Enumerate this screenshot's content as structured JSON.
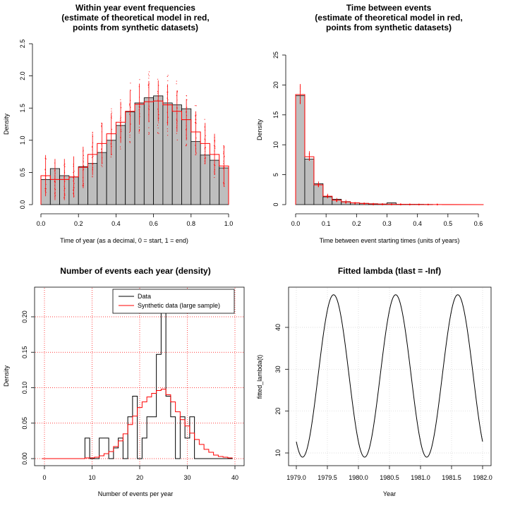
{
  "chart_data": [
    {
      "type": "bar",
      "title": "Within year event frequencies",
      "subtitle_lines": [
        "(estimate of theoretical model in red,",
        "points from synthetic datasets)"
      ],
      "xlabel": "Time of year (as a decimal, 0 = start, 1 = end)",
      "ylabel": "Density",
      "xlim": [
        0,
        1
      ],
      "ylim": [
        0,
        2.5
      ],
      "x_ticks": [
        "0.0",
        "0.2",
        "0.4",
        "0.6",
        "0.8",
        "1.0"
      ],
      "y_ticks": [
        "0.0",
        "0.5",
        "1.0",
        "1.5",
        "2.0",
        "2.5"
      ],
      "bin_edges": [
        0,
        0.05,
        0.1,
        0.15,
        0.2,
        0.25,
        0.3,
        0.35,
        0.4,
        0.45,
        0.5,
        0.55,
        0.6,
        0.65,
        0.7,
        0.75,
        0.8,
        0.85,
        0.9,
        0.95,
        1.0
      ],
      "series": [
        {
          "name": "Data",
          "color": "#bebebe",
          "values": [
            0.39,
            0.56,
            0.45,
            0.43,
            0.59,
            0.64,
            0.81,
            1.0,
            1.23,
            1.44,
            1.58,
            1.66,
            1.69,
            1.58,
            1.55,
            1.49,
            0.98,
            0.77,
            0.69,
            0.57
          ]
        },
        {
          "name": "Model estimate",
          "color": "#ff0000",
          "values": [
            0.45,
            0.39,
            0.39,
            0.43,
            0.58,
            0.78,
            0.95,
            1.1,
            1.28,
            1.45,
            1.56,
            1.6,
            1.61,
            1.55,
            1.45,
            1.32,
            1.13,
            0.95,
            0.78,
            0.6
          ]
        }
      ]
    },
    {
      "type": "bar",
      "title": "Time between events",
      "subtitle_lines": [
        "(estimate of theoretical model in red,",
        "points from synthetic datasets)"
      ],
      "xlabel": "Time between event starting times (units of years)",
      "ylabel": "Density",
      "xlim": [
        0,
        0.62
      ],
      "ylim": [
        0,
        25
      ],
      "x_ticks": [
        "0.0",
        "0.1",
        "0.2",
        "0.3",
        "0.4",
        "0.5",
        "0.6"
      ],
      "y_ticks": [
        "0",
        "5",
        "10",
        "15",
        "20",
        "25"
      ],
      "bin_width": 0.03,
      "series": [
        {
          "name": "Data",
          "color": "#bebebe",
          "values": [
            18.2,
            7.6,
            3.5,
            1.3,
            0.9,
            0.5,
            0.3,
            0.2,
            0.15,
            0.1,
            0.3,
            0.05,
            0.05,
            0.05,
            0.03,
            0.0
          ]
        },
        {
          "name": "Model estimate",
          "color": "#ff0000",
          "values": [
            18.4,
            8.0,
            3.3,
            1.4,
            0.75,
            0.45,
            0.3,
            0.2,
            0.12,
            0.08,
            0.05,
            0.04,
            0.03,
            0.02,
            0.02,
            0.01
          ]
        }
      ]
    },
    {
      "type": "line",
      "title": "Number of events each year (density)",
      "xlabel": "Number of events per year",
      "ylabel": "Density",
      "xlim": [
        0,
        40
      ],
      "ylim": [
        0,
        0.22
      ],
      "x_ticks": [
        "0",
        "10",
        "20",
        "30",
        "40"
      ],
      "y_ticks": [
        "0.00",
        "0.05",
        "0.10",
        "0.15",
        "0.20"
      ],
      "grid": true,
      "legend": {
        "position": "top-right",
        "entries": [
          "Data",
          "Synthetic data (large sample)"
        ]
      },
      "series": [
        {
          "name": "Data",
          "color": "#000000",
          "x": [
            0,
            1,
            2,
            3,
            4,
            5,
            6,
            7,
            8,
            9,
            10,
            11,
            12,
            13,
            14,
            15,
            16,
            17,
            18,
            19,
            20,
            21,
            22,
            23,
            24,
            25,
            26,
            27,
            28,
            29,
            30,
            31,
            32,
            33,
            34,
            35,
            36,
            37,
            38,
            39
          ],
          "values": [
            0,
            0,
            0,
            0,
            0,
            0,
            0,
            0,
            0,
            0.029,
            0,
            0,
            0.029,
            0.029,
            0,
            0.015,
            0.029,
            0,
            0.059,
            0.088,
            0,
            0.029,
            0.059,
            0.059,
            0.147,
            0.235,
            0.088,
            0.059,
            0,
            0.059,
            0.029,
            0.059,
            0,
            0,
            0,
            0,
            0,
            0,
            0,
            0
          ]
        },
        {
          "name": "Synthetic data (large sample)",
          "color": "#ff0000",
          "x": [
            0,
            1,
            2,
            3,
            4,
            5,
            6,
            7,
            8,
            9,
            10,
            11,
            12,
            13,
            14,
            15,
            16,
            17,
            18,
            19,
            20,
            21,
            22,
            23,
            24,
            25,
            26,
            27,
            28,
            29,
            30,
            31,
            32,
            33,
            34,
            35,
            36,
            37,
            38,
            39
          ],
          "values": [
            0,
            0,
            0,
            0,
            0,
            0,
            0,
            0,
            0,
            0.001,
            0.001,
            0.002,
            0.004,
            0.007,
            0.01,
            0.017,
            0.025,
            0.035,
            0.048,
            0.06,
            0.072,
            0.08,
            0.087,
            0.092,
            0.096,
            0.098,
            0.09,
            0.08,
            0.066,
            0.055,
            0.046,
            0.036,
            0.027,
            0.02,
            0.013,
            0.009,
            0.005,
            0.003,
            0.002,
            0.001
          ]
        }
      ]
    },
    {
      "type": "line",
      "title": "Fitted lambda (tlast = -Inf)",
      "xlabel": "Year",
      "ylabel": "fitted_lambda(t)",
      "xlim": [
        1979.0,
        1982.0
      ],
      "ylim": [
        9,
        48
      ],
      "x_ticks": [
        "1979.0",
        "1979.5",
        "1980.0",
        "1980.5",
        "1981.0",
        "1981.5",
        "1982.0"
      ],
      "y_ticks": [
        "10",
        "20",
        "30",
        "40"
      ],
      "grid": true,
      "function": {
        "mean": 28.4,
        "amplitude": 19.4,
        "period_years": 1,
        "peak_year_fraction": 0.6
      },
      "series": [
        {
          "name": "fitted_lambda",
          "color": "#000000"
        }
      ]
    }
  ]
}
